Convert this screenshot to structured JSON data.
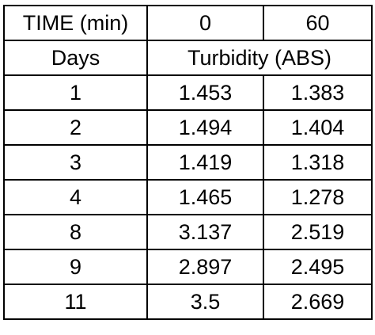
{
  "table": {
    "header_row": {
      "label": "TIME (min)",
      "times": [
        "0",
        "60"
      ]
    },
    "subheader_row": {
      "label": "Days",
      "measure": "Turbidity (ABS)"
    },
    "rows": [
      {
        "day": "1",
        "t0": "1.453",
        "t60": "1.383"
      },
      {
        "day": "2",
        "t0": "1.494",
        "t60": "1.404"
      },
      {
        "day": "3",
        "t0": "1.419",
        "t60": "1.318"
      },
      {
        "day": "4",
        "t0": "1.465",
        "t60": "1.278"
      },
      {
        "day": "8",
        "t0": "3.137",
        "t60": "2.519"
      },
      {
        "day": "9",
        "t0": "2.897",
        "t60": "2.495"
      },
      {
        "day": "11",
        "t0": "3.5",
        "t60": "2.669"
      }
    ]
  },
  "colors": {
    "border": "#000000",
    "text": "#000000",
    "background": "#ffffff"
  }
}
